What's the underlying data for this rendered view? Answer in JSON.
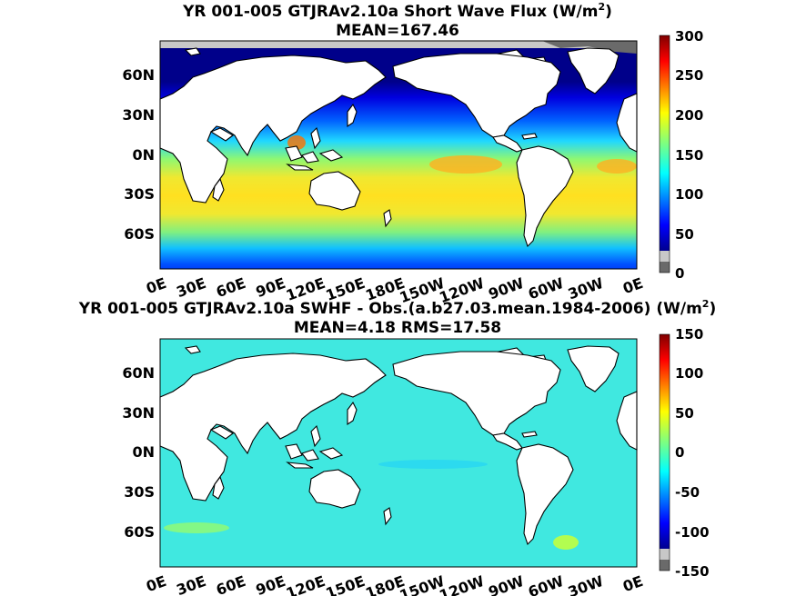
{
  "panels": [
    {
      "title_main": "YR 001-005 GTJRAv2.10a  Short Wave Flux (W/m",
      "title_sup": "2",
      "title_tail": ")",
      "subtitle": "MEAN=167.46",
      "colorbar": {
        "ticks": [
          "300",
          "250",
          "200",
          "150",
          "100",
          "50",
          "0"
        ],
        "range": [
          0,
          300
        ],
        "undercolors": [
          "#c8c8c8",
          "#6a6a6a"
        ]
      }
    },
    {
      "title_main": "YR 001-005 GTJRAv2.10a SWHF - Obs.(a.b27.03.mean.1984-2006) (W/m",
      "title_sup": "2",
      "title_tail": ")",
      "subtitle": "MEAN=4.18 RMS=17.58",
      "colorbar": {
        "ticks": [
          "150",
          "100",
          "50",
          "0",
          "-50",
          "-100",
          "-150"
        ],
        "range": [
          -150,
          150
        ],
        "undercolors": [
          "#c8c8c8",
          "#6a6a6a"
        ]
      }
    }
  ],
  "axes": {
    "lat_ticks": [
      "60N",
      "30N",
      "0N",
      "30S",
      "60S"
    ],
    "lon_ticks": [
      "0E",
      "30E",
      "60E",
      "90E",
      "120E",
      "150E",
      "180E",
      "150W",
      "120W",
      "90W",
      "60W",
      "30W",
      "0E"
    ]
  },
  "colors": {
    "ocean_mid": "#f6e01f",
    "ocean_tropics": "#ffb400",
    "ocean_highlat": "#0014e6",
    "diff_ocean": "#40f0d8",
    "colormap": [
      "#00008f",
      "#0000ff",
      "#0070ff",
      "#00dfff",
      "#50ffaf",
      "#bfff40",
      "#ffd000",
      "#ff6000",
      "#ef0000",
      "#800000"
    ]
  }
}
